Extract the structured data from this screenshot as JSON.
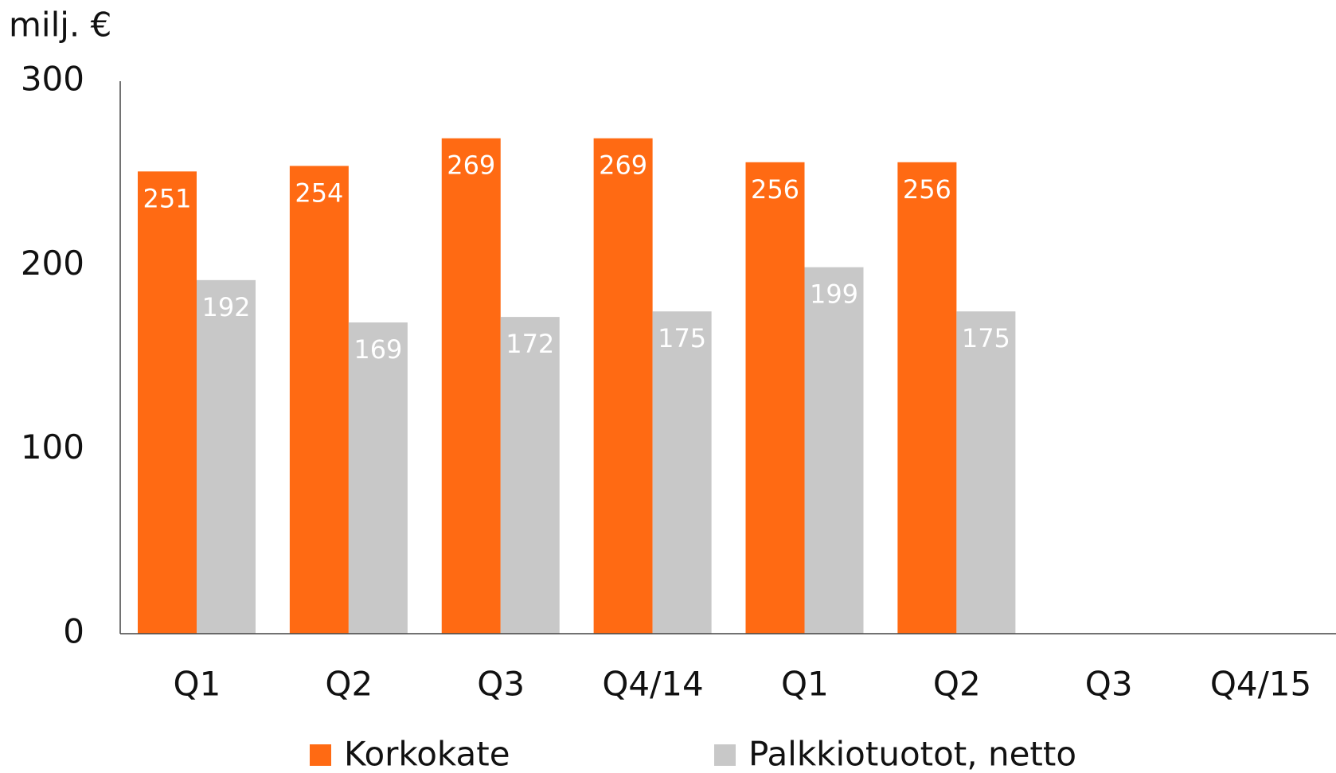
{
  "chart_data": {
    "type": "bar",
    "y_label": "milj. €",
    "categories": [
      "Q1",
      "Q2",
      "Q3",
      "Q4/14",
      "Q1",
      "Q2",
      "Q3",
      "Q4/15"
    ],
    "series": [
      {
        "name": "Korkokate",
        "color": "#ff6a13",
        "values": [
          251,
          254,
          269,
          269,
          256,
          256,
          null,
          null
        ]
      },
      {
        "name": "Palkkiotuotot, netto",
        "color": "#c8c8c8",
        "values": [
          192,
          169,
          172,
          175,
          199,
          175,
          null,
          null
        ]
      }
    ],
    "ylim": [
      0,
      300
    ],
    "yticks": [
      0,
      100,
      200,
      300
    ],
    "grid": false
  }
}
